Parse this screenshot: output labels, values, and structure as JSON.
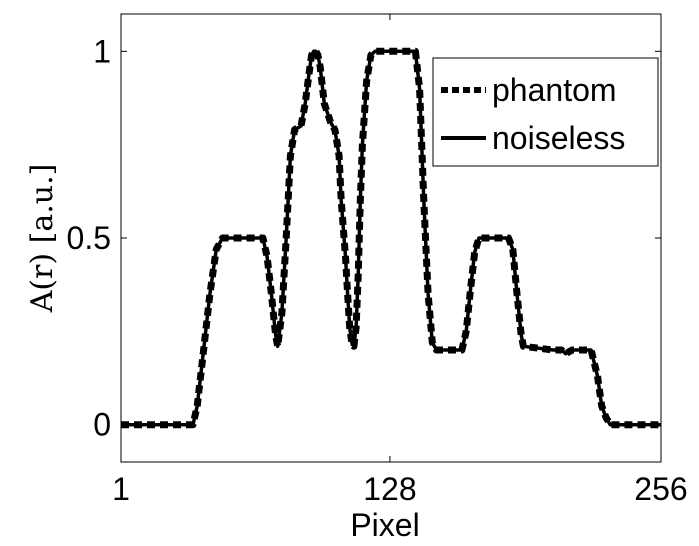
{
  "chart_data": {
    "type": "line",
    "title": "",
    "xlabel": "Pixel",
    "ylabel": "A(r) [a.u.]",
    "xlim": [
      1,
      256
    ],
    "ylim": [
      -0.1,
      1.1
    ],
    "xticks": [
      1,
      128,
      256
    ],
    "xtick_labels": [
      "1",
      "128",
      "256"
    ],
    "yticks": [
      0,
      0.5,
      1
    ],
    "ytick_labels": [
      "0",
      "0.5",
      "1"
    ],
    "grid": false,
    "legend_position": "top-right",
    "series": [
      {
        "name": "phantom",
        "style": "dashed",
        "x": [
          1,
          35,
          37,
          40,
          43,
          46,
          49,
          56,
          68,
          70,
          72,
          74,
          75,
          77,
          79,
          81,
          83,
          86,
          88,
          90,
          91,
          92,
          93,
          94,
          95,
          97,
          100,
          102,
          104,
          105,
          107,
          108,
          109,
          110,
          111,
          112,
          113,
          114,
          115,
          117,
          119,
          121,
          133,
          140,
          142,
          144,
          146,
          148,
          150,
          160,
          162,
          164,
          166,
          168,
          170,
          182,
          184,
          186,
          188,
          190,
          191,
          205,
          207,
          209,
          211,
          214,
          216,
          223,
          226,
          228,
          230,
          232,
          234,
          256
        ],
        "y": [
          0,
          0,
          0.05,
          0.2,
          0.35,
          0.47,
          0.5,
          0.5,
          0.5,
          0.45,
          0.35,
          0.24,
          0.21,
          0.3,
          0.5,
          0.72,
          0.79,
          0.8,
          0.86,
          0.95,
          0.99,
          1.0,
          1.0,
          0.99,
          0.96,
          0.86,
          0.81,
          0.79,
          0.72,
          0.6,
          0.45,
          0.35,
          0.26,
          0.22,
          0.21,
          0.26,
          0.4,
          0.6,
          0.75,
          0.92,
          0.99,
          1.0,
          1.0,
          1.0,
          0.9,
          0.6,
          0.35,
          0.22,
          0.2,
          0.2,
          0.2,
          0.25,
          0.36,
          0.46,
          0.5,
          0.5,
          0.5,
          0.47,
          0.35,
          0.24,
          0.21,
          0.2,
          0.2,
          0.2,
          0.19,
          0.2,
          0.2,
          0.2,
          0.13,
          0.05,
          0.02,
          0,
          0,
          0
        ]
      },
      {
        "name": "noiseless",
        "style": "solid",
        "x": [
          1,
          35,
          37,
          40,
          43,
          46,
          49,
          56,
          68,
          70,
          72,
          74,
          75,
          77,
          79,
          81,
          83,
          86,
          88,
          90,
          91,
          92,
          93,
          94,
          95,
          97,
          100,
          102,
          104,
          105,
          107,
          108,
          109,
          110,
          111,
          112,
          113,
          114,
          115,
          117,
          119,
          121,
          133,
          140,
          142,
          144,
          146,
          148,
          150,
          160,
          162,
          164,
          166,
          168,
          170,
          182,
          184,
          186,
          188,
          190,
          191,
          205,
          207,
          209,
          211,
          214,
          216,
          223,
          226,
          228,
          230,
          232,
          234,
          256
        ],
        "y": [
          0,
          0,
          0.05,
          0.2,
          0.35,
          0.47,
          0.5,
          0.5,
          0.5,
          0.45,
          0.35,
          0.24,
          0.21,
          0.3,
          0.5,
          0.72,
          0.79,
          0.8,
          0.86,
          0.95,
          0.99,
          1.0,
          1.0,
          0.99,
          0.96,
          0.86,
          0.81,
          0.79,
          0.72,
          0.6,
          0.45,
          0.35,
          0.26,
          0.22,
          0.21,
          0.26,
          0.4,
          0.6,
          0.75,
          0.92,
          0.99,
          1.0,
          1.0,
          1.0,
          0.9,
          0.6,
          0.35,
          0.22,
          0.2,
          0.2,
          0.2,
          0.25,
          0.36,
          0.46,
          0.5,
          0.5,
          0.5,
          0.47,
          0.35,
          0.24,
          0.21,
          0.2,
          0.2,
          0.2,
          0.19,
          0.2,
          0.2,
          0.2,
          0.13,
          0.05,
          0.02,
          0,
          0,
          0
        ]
      }
    ]
  },
  "colors": {
    "line": "#000000",
    "background": "#ffffff"
  }
}
